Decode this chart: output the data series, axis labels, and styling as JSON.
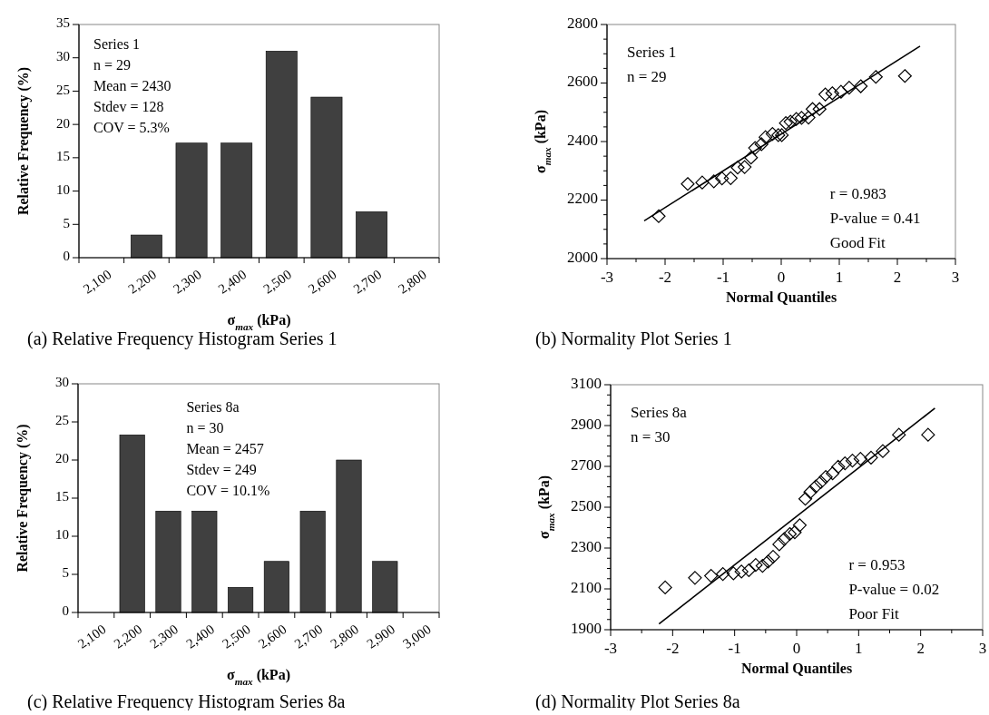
{
  "chart_data": [
    {
      "type": "bar",
      "title": "(a) Relative Frequency Histogram Series 1",
      "xlabel": "σ$_{max}$ (kPa)",
      "ylabel": "Relative Frequency (%)",
      "categories": [
        "2,100",
        "2,200",
        "2,300",
        "2,400",
        "2,500",
        "2,600",
        "2,700",
        "2,800"
      ],
      "values": [
        0,
        3.4,
        17.2,
        17.2,
        31.0,
        24.1,
        6.9,
        0
      ],
      "color": "#404040",
      "ylim": [
        0,
        35
      ],
      "yticks": [
        0,
        5,
        10,
        15,
        20,
        25,
        30,
        35
      ],
      "annotations": [
        "Series 1\nn = 29\nMean = 2430\nStdev = 128\nCOV = 5.3%"
      ]
    },
    {
      "type": "scatter",
      "title": "(b) Normality Plot Series 1",
      "xlabel": "Normal Quantiles",
      "ylabel": "σ$_{max}$ (kPa)",
      "xlim": [
        -3,
        3
      ],
      "xticks": [
        -3,
        {
          "value": -2.5,
          "label": null
        },
        -2,
        {
          "value": -1.5,
          "label": null
        },
        -1,
        {
          "value": -0.5,
          "label": null
        },
        0,
        {
          "value": 0.5,
          "label": null
        },
        1,
        {
          "value": 1.5,
          "label": null
        },
        2,
        {
          "value": 2.5,
          "label": null
        },
        3
      ],
      "ylim": [
        2000,
        2800
      ],
      "yticks": [
        2000,
        {
          "value": 2050,
          "label": null
        },
        {
          "value": 2100,
          "label": null
        },
        {
          "value": 2150,
          "label": null
        },
        2200,
        {
          "value": 2250,
          "label": null
        },
        {
          "value": 2300,
          "label": null
        },
        {
          "value": 2350,
          "label": null
        },
        2400,
        {
          "value": 2450,
          "label": null
        },
        {
          "value": 2500,
          "label": null
        },
        {
          "value": 2550,
          "label": null
        },
        2600,
        {
          "value": 2650,
          "label": null
        },
        {
          "value": 2700,
          "label": null
        },
        {
          "value": 2750,
          "label": null
        },
        2800
      ],
      "series": [
        {
          "type": "scatter",
          "marker": "diamond",
          "color": "#000000",
          "x": [
            -2.11,
            -1.61,
            -1.36,
            -1.16,
            -1.02,
            -0.87,
            -0.75,
            -0.63,
            -0.52,
            -0.45,
            -0.34,
            -0.27,
            -0.15,
            -0.05,
            0.01,
            0.08,
            0.16,
            0.26,
            0.35,
            0.47,
            0.54,
            0.66,
            0.76,
            0.88,
            1.03,
            1.17,
            1.37,
            1.63,
            2.13
          ],
          "values": [
            2145,
            2255,
            2260,
            2264,
            2274,
            2275,
            2311,
            2313,
            2345,
            2378,
            2391,
            2415,
            2426,
            2422,
            2422,
            2463,
            2468,
            2477,
            2481,
            2482,
            2511,
            2511,
            2561,
            2565,
            2570,
            2584,
            2589,
            2621,
            2624
          ]
        },
        {
          "type": "line",
          "marker": "none",
          "color": "#000000",
          "x": [
            -2.36,
            2.39
          ],
          "values": [
            2129,
            2726
          ]
        }
      ],
      "annotations": [
        "Series 1\nn = 29",
        "r = 0.983\nP-value = 0.41\nGood Fit"
      ]
    },
    {
      "type": "bar",
      "title": "(c) Relative Frequency Histogram Series 8a",
      "xlabel": "σ$_{max}$ (kPa)",
      "ylabel": "Relative Frequency (%)",
      "categories": [
        "2,100",
        "2,200",
        "2,300",
        "2,400",
        "2,500",
        "2,600",
        "2,700",
        "2,800",
        "2,900",
        "3,000"
      ],
      "values": [
        0,
        23.3,
        13.3,
        13.3,
        3.3,
        6.7,
        13.3,
        20.0,
        6.7,
        0
      ],
      "color": "#404040",
      "ylim": [
        0,
        30
      ],
      "yticks": [
        0,
        5,
        10,
        15,
        20,
        25,
        30
      ],
      "annotations": [
        "Series 8a\nn = 30\nMean = 2457\nStdev = 249\nCOV = 10.1%"
      ]
    },
    {
      "type": "scatter",
      "title": "(d) Normality Plot Series 8a",
      "xlabel": "Normal Quantiles",
      "ylabel": "σ$_{max}$ (kPa)",
      "xlim": [
        -3,
        3
      ],
      "xticks": [
        -3,
        {
          "value": -2.5,
          "label": null
        },
        -2,
        {
          "value": -1.5,
          "label": null
        },
        -1,
        {
          "value": -0.5,
          "label": null
        },
        0,
        {
          "value": 0.5,
          "label": null
        },
        1,
        {
          "value": 1.5,
          "label": null
        },
        2,
        {
          "value": 2.5,
          "label": null
        },
        3
      ],
      "ylim": [
        1900,
        3100
      ],
      "yticks": [
        1900,
        {
          "value": 1950,
          "label": null
        },
        {
          "value": 2000,
          "label": null
        },
        {
          "value": 2050,
          "label": null
        },
        2100,
        {
          "value": 2150,
          "label": null
        },
        {
          "value": 2200,
          "label": null
        },
        {
          "value": 2250,
          "label": null
        },
        2300,
        {
          "value": 2350,
          "label": null
        },
        {
          "value": 2400,
          "label": null
        },
        {
          "value": 2450,
          "label": null
        },
        2500,
        {
          "value": 2550,
          "label": null
        },
        {
          "value": 2600,
          "label": null
        },
        {
          "value": 2650,
          "label": null
        },
        2700,
        {
          "value": 2750,
          "label": null
        },
        {
          "value": 2800,
          "label": null
        },
        {
          "value": 2850,
          "label": null
        },
        2900,
        {
          "value": 2950,
          "label": null
        },
        {
          "value": 3000,
          "label": null
        },
        {
          "value": 3050,
          "label": null
        },
        3100
      ],
      "series": [
        {
          "type": "scatter",
          "marker": "diamond",
          "color": "#000000",
          "x": [
            -2.12,
            -1.64,
            -1.38,
            -1.19,
            -1.02,
            -0.89,
            -0.77,
            -0.66,
            -0.55,
            -0.46,
            -0.38,
            -0.28,
            -0.2,
            -0.11,
            -0.03,
            0.05,
            0.14,
            0.22,
            0.31,
            0.39,
            0.47,
            0.58,
            0.67,
            0.78,
            0.9,
            1.03,
            1.2,
            1.39,
            1.65,
            2.12
          ],
          "values": [
            2107,
            2154,
            2164,
            2173,
            2176,
            2185,
            2191,
            2217,
            2213,
            2234,
            2257,
            2318,
            2344,
            2369,
            2377,
            2412,
            2541,
            2574,
            2602,
            2623,
            2648,
            2666,
            2698,
            2715,
            2728,
            2737,
            2743,
            2775,
            2855,
            2855
          ]
        },
        {
          "type": "line",
          "marker": "none",
          "color": "#000000",
          "x": [
            -2.22,
            2.23
          ],
          "values": [
            1928,
            2985
          ]
        }
      ],
      "annotations": [
        "Series 8a\nn = 30",
        "r = 0.953\nP-value = 0.02\nPoor Fit"
      ]
    }
  ]
}
